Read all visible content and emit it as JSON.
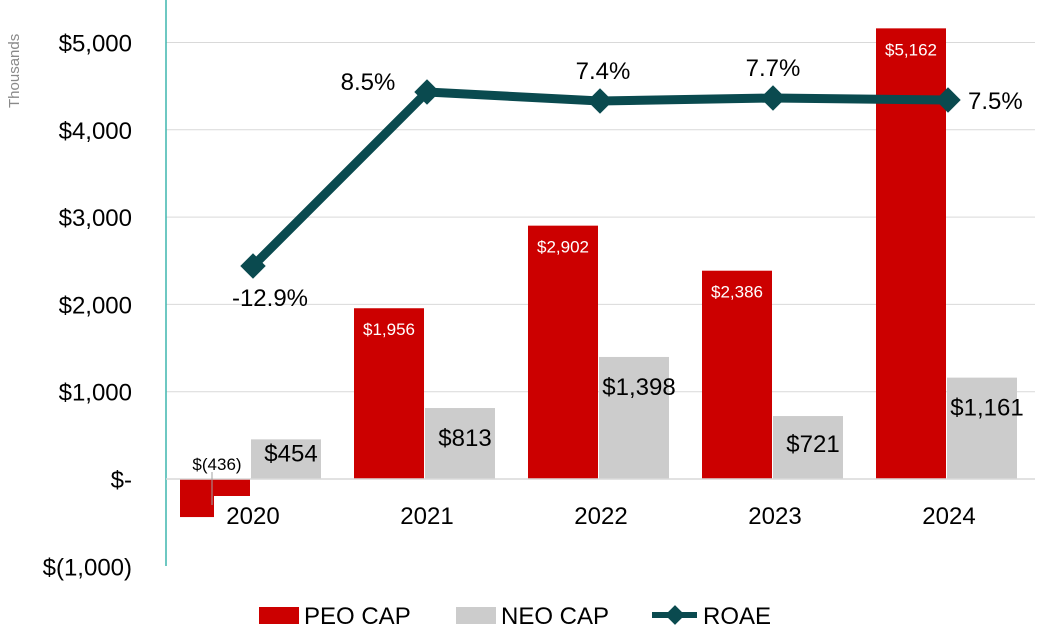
{
  "chart_data": {
    "type": "bar",
    "title": "",
    "unit_label": "Thousands",
    "categories": [
      "2020",
      "2021",
      "2022",
      "2023",
      "2024"
    ],
    "ylim": [
      -1000,
      5500
    ],
    "yticks": [
      -1000,
      0,
      1000,
      2000,
      3000,
      4000,
      5000
    ],
    "ytick_labels": [
      "$(1,000)",
      "$-",
      "$1,000",
      "$2,000",
      "$3,000",
      "$4,000",
      "$5,000"
    ],
    "grid": true,
    "legend_position": "bottom",
    "series": [
      {
        "name": "PEO CAP",
        "kind": "bar",
        "color": "#cc0000",
        "values": [
          -436,
          1956,
          2902,
          2386,
          5162
        ],
        "labels": [
          "$(436)",
          "$1,956",
          "$2,902",
          "$2,386",
          "$5,162"
        ]
      },
      {
        "name": "NEO CAP",
        "kind": "bar",
        "color": "#cccccc",
        "values": [
          454,
          813,
          1398,
          721,
          1161
        ],
        "labels": [
          "$454",
          "$813",
          "$1,398",
          "$721",
          "$1,161"
        ]
      },
      {
        "name": "ROAE",
        "kind": "line",
        "color": "#0a4a4f",
        "values": [
          -12.9,
          8.5,
          7.4,
          7.7,
          7.5
        ],
        "labels": [
          "-12.9%",
          "8.5%",
          "7.4%",
          "7.7%",
          "7.5%"
        ]
      }
    ]
  }
}
